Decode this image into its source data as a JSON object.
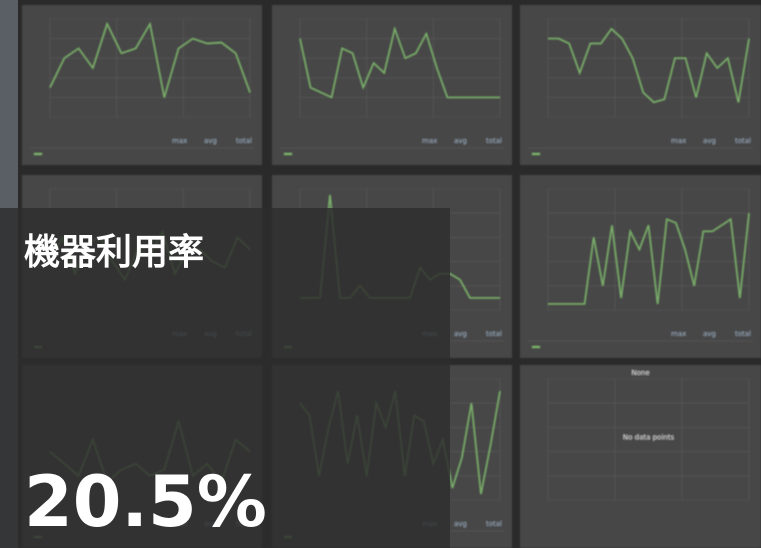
{
  "overlay": {
    "title": "機器利用率",
    "value": "20.5%"
  },
  "legend_headers": [
    "max",
    "avg",
    "total"
  ],
  "panels": [
    {
      "ylim": [
        0,
        10
      ],
      "values": [
        3,
        6,
        7,
        5,
        9.5,
        6.5,
        7,
        9.5,
        2,
        7,
        8,
        7.5,
        7.6,
        6.5,
        2.5
      ]
    },
    {
      "ylim": [
        0,
        10
      ],
      "values": [
        8,
        3,
        2.5,
        2,
        7,
        6.5,
        3,
        5.5,
        4.5,
        9,
        6,
        6.5,
        8.5,
        5,
        2,
        2,
        2,
        2,
        2,
        2
      ]
    },
    {
      "ylim": [
        0,
        10
      ],
      "values": [
        8,
        8,
        7.5,
        4.5,
        7.5,
        7.5,
        9,
        8,
        6,
        2.5,
        1.5,
        1.8,
        6,
        6,
        2,
        6.5,
        5,
        6,
        1.5,
        8
      ]
    },
    {
      "ylim": [
        0,
        10
      ],
      "values": [
        4,
        6,
        3,
        5.5,
        6,
        4,
        2.5,
        5,
        4.5,
        6.5,
        3,
        5,
        5,
        4,
        3.5,
        6,
        5
      ]
    },
    {
      "ylim": [
        0,
        10
      ],
      "values": [
        1,
        1,
        1,
        9.5,
        1,
        1,
        2,
        1,
        1,
        1,
        1,
        1,
        3.5,
        2.5,
        3,
        3,
        2.5,
        1,
        1,
        1,
        1
      ]
    },
    {
      "ylim": [
        0,
        10
      ],
      "values": [
        0.5,
        0.5,
        0.5,
        0.5,
        0.5,
        6,
        2,
        7,
        1,
        6.5,
        5,
        7,
        0.5,
        7.5,
        7.2,
        5,
        2,
        6.5,
        6.5,
        7,
        7.5,
        1,
        8
      ]
    },
    {
      "ylim": [
        0,
        10
      ],
      "values": [
        4,
        3,
        2,
        5,
        1.5,
        2.5,
        3,
        2,
        2.5,
        6.5,
        2,
        3,
        1.5,
        5,
        4
      ]
    },
    {
      "ylim": [
        0,
        10
      ],
      "values": [
        8,
        7,
        2,
        6,
        9,
        3,
        7,
        2,
        8,
        6,
        9,
        2,
        7,
        6.5,
        3,
        5,
        1,
        3.5,
        8,
        0.5,
        4.5,
        9
      ]
    }
  ],
  "empty_panel": {
    "title": "None",
    "message": "No data points"
  }
}
